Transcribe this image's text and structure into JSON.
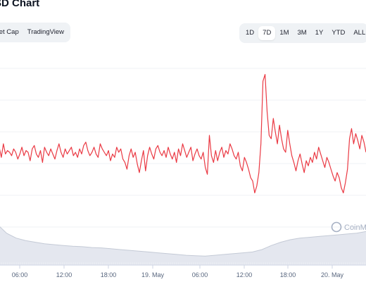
{
  "header": {
    "title": "SD Chart"
  },
  "chart_type_tabs": [
    {
      "label": "ket Cap"
    },
    {
      "label": "TradingView"
    }
  ],
  "range_tabs": [
    {
      "label": "1D"
    },
    {
      "label": "7D",
      "active": true
    },
    {
      "label": "1M"
    },
    {
      "label": "3M"
    },
    {
      "label": "1Y"
    },
    {
      "label": "YTD"
    },
    {
      "label": "ALL"
    }
  ],
  "watermark": {
    "text": "CoinM",
    "icon": "coinmarketcap-logo-icon"
  },
  "colors": {
    "price_line": "#ea3943",
    "grid": "#eff2f5",
    "volume_fill": "#dfe3ec",
    "volume_stroke": "#c4cad6",
    "tab_bg": "#eff2f5"
  },
  "chart_data": {
    "type": "line",
    "title": "SD Chart",
    "x_tick_labels": [
      "06:00",
      "12:00",
      "18:00",
      "19. May",
      "06:00",
      "12:00",
      "18:00",
      "20. May"
    ],
    "grid": true,
    "y_axis_labels_visible": false,
    "series": [
      {
        "kind": "price",
        "y_scale": [
          0,
          100
        ],
        "values": [
          50,
          53,
          47,
          55,
          49,
          51,
          50,
          48,
          52,
          50,
          46,
          49,
          53,
          48,
          51,
          50,
          45,
          52,
          54,
          49,
          47,
          51,
          44,
          53,
          50,
          48,
          52,
          49,
          46,
          51,
          55,
          50,
          47,
          52,
          49,
          51,
          53,
          48,
          50,
          47,
          52,
          49,
          54,
          56,
          51,
          48,
          50,
          53,
          49,
          47,
          55,
          52,
          50,
          48,
          51,
          45,
          49,
          47,
          53,
          50,
          52,
          46,
          44,
          40,
          48,
          52,
          47,
          50,
          43,
          38,
          45,
          51,
          39,
          48,
          53,
          49,
          46,
          52,
          54,
          50,
          48,
          51,
          47,
          53,
          49,
          46,
          50,
          44,
          52,
          48,
          55,
          51,
          47,
          50,
          53,
          45,
          49,
          52,
          48,
          46,
          50,
          41,
          37,
          60,
          48,
          44,
          51,
          45,
          50,
          53,
          47,
          51,
          49,
          55,
          52,
          48,
          46,
          50,
          42,
          39,
          47,
          44,
          40,
          35,
          33,
          26,
          30,
          38,
          55,
          92,
          96,
          74,
          60,
          58,
          70,
          62,
          55,
          66,
          58,
          52,
          50,
          63,
          55,
          48,
          44,
          39,
          45,
          49,
          43,
          38,
          45,
          42,
          47,
          44,
          50,
          46,
          53,
          49,
          45,
          41,
          47,
          44,
          40,
          36,
          33,
          38,
          35,
          29,
          26,
          32,
          40,
          58,
          64,
          55,
          61,
          57,
          52,
          60,
          56,
          50
        ]
      },
      {
        "kind": "volume",
        "y_scale": [
          0,
          100
        ],
        "values": [
          100,
          78,
          66,
          60,
          56,
          52,
          50,
          48,
          46,
          45,
          43,
          42,
          40,
          38,
          36,
          34,
          32,
          30,
          28,
          26,
          24,
          23,
          22,
          24,
          26,
          28,
          30,
          32,
          38,
          48,
          56,
          62,
          66,
          68,
          70,
          72,
          74,
          76,
          78,
          82
        ]
      }
    ]
  }
}
